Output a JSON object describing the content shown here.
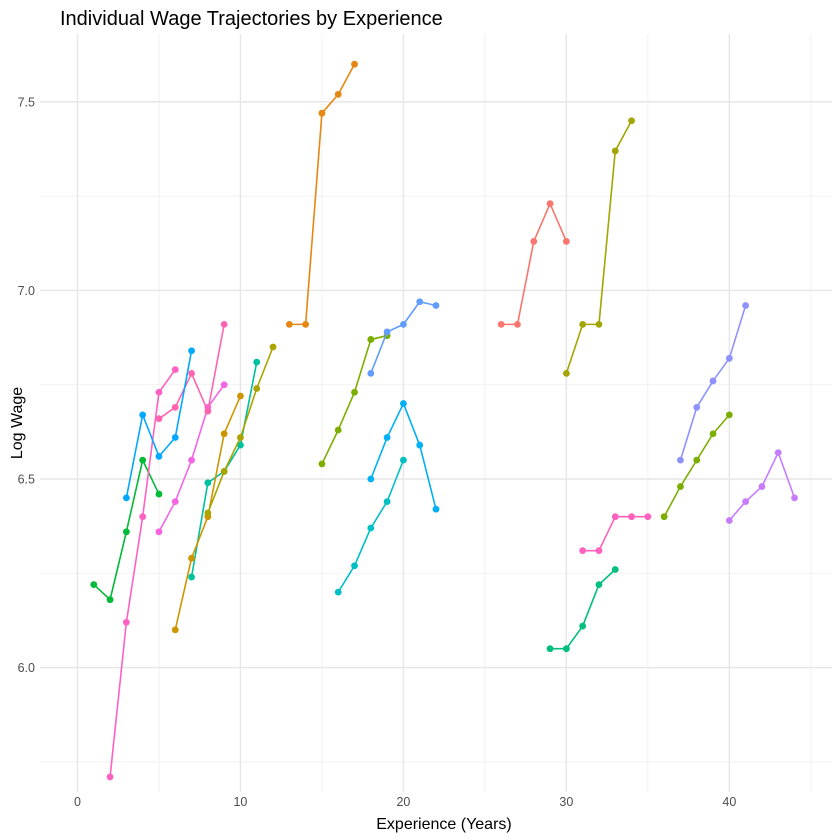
{
  "chart_data": {
    "type": "line",
    "title": "Individual Wage Trajectories by Experience",
    "xlabel": "Experience (Years)",
    "ylabel": "Log Wage",
    "xlim": [
      -2.3,
      46.3
    ],
    "ylim": [
      5.67,
      7.68
    ],
    "x_ticks": [
      0,
      10,
      20,
      30,
      40
    ],
    "x_tick_labels": [
      "0",
      "10",
      "20",
      "30",
      "40"
    ],
    "y_ticks": [
      6.0,
      6.5,
      7.0,
      7.5
    ],
    "y_tick_labels": [
      "6.0",
      "6.5",
      "7.0",
      "7.5"
    ],
    "grid": true,
    "legend": "none",
    "series": [
      {
        "color": "#7CAE00",
        "x": [
          36,
          37,
          38,
          39,
          40
        ],
        "y": [
          6.4,
          6.48,
          6.55,
          6.62,
          6.67
        ]
      },
      {
        "color": "#00BA38",
        "x": [
          1,
          2,
          3,
          4,
          5
        ],
        "y": [
          6.22,
          6.18,
          6.36,
          6.55,
          6.46
        ]
      },
      {
        "color": "#00C19F",
        "x": [
          7,
          8,
          9,
          10,
          11
        ],
        "y": [
          6.24,
          6.49,
          6.52,
          6.59,
          6.81
        ]
      },
      {
        "color": "#F564E3",
        "x": [
          5,
          6,
          7,
          8,
          9
        ],
        "y": [
          6.36,
          6.44,
          6.55,
          6.69,
          6.75
        ]
      },
      {
        "color": "#FF64B0",
        "x": [
          5,
          6,
          7,
          8,
          9
        ],
        "y": [
          6.66,
          6.69,
          6.78,
          6.68,
          6.91
        ]
      },
      {
        "color": "#FF61C3",
        "x": [
          2,
          3,
          4,
          5,
          6
        ],
        "y": [
          5.71,
          6.12,
          6.4,
          6.73,
          6.79
        ]
      },
      {
        "color": "#00A9FF",
        "x": [
          3,
          4,
          5,
          6,
          7
        ],
        "y": [
          6.45,
          6.67,
          6.56,
          6.61,
          6.84
        ]
      },
      {
        "color": "#CD9600",
        "x": [
          6,
          7,
          8,
          9,
          10
        ],
        "y": [
          6.1,
          6.29,
          6.4,
          6.62,
          6.72
        ]
      },
      {
        "color": "#ABA300",
        "x": [
          8,
          9,
          10,
          11,
          12
        ],
        "y": [
          6.41,
          6.52,
          6.61,
          6.74,
          6.85
        ]
      },
      {
        "color": "#E68613",
        "x": [
          13,
          14,
          15,
          16,
          17
        ],
        "y": [
          6.91,
          6.91,
          7.47,
          7.52,
          7.6
        ]
      },
      {
        "color": "#7CAE00",
        "x": [
          15,
          16,
          17,
          18,
          19
        ],
        "y": [
          6.54,
          6.63,
          6.73,
          6.87,
          6.88
        ]
      },
      {
        "color": "#00BFC4",
        "x": [
          16,
          17,
          18,
          19,
          20
        ],
        "y": [
          6.2,
          6.27,
          6.37,
          6.44,
          6.55
        ]
      },
      {
        "color": "#00B0F6",
        "x": [
          18,
          19,
          20,
          21,
          22
        ],
        "y": [
          6.5,
          6.61,
          6.7,
          6.59,
          6.42
        ]
      },
      {
        "color": "#619CFF",
        "x": [
          18,
          19,
          20,
          21,
          22
        ],
        "y": [
          6.78,
          6.89,
          6.91,
          6.97,
          6.96
        ]
      },
      {
        "color": "#F8766D",
        "x": [
          26,
          27,
          28,
          29,
          30
        ],
        "y": [
          6.91,
          6.91,
          7.13,
          7.23,
          7.13
        ]
      },
      {
        "color": "#A3A500",
        "x": [
          30,
          31,
          32,
          33,
          34
        ],
        "y": [
          6.78,
          6.91,
          6.91,
          7.37,
          7.45
        ]
      },
      {
        "color": "#00BF7D",
        "x": [
          29,
          30,
          31,
          32,
          33
        ],
        "y": [
          6.05,
          6.05,
          6.11,
          6.22,
          6.26
        ]
      },
      {
        "color": "#FF62BC",
        "x": [
          31,
          32,
          33,
          34,
          35
        ],
        "y": [
          6.31,
          6.31,
          6.4,
          6.4,
          6.4
        ]
      },
      {
        "color": "#8F91FF",
        "x": [
          37,
          38,
          39,
          40,
          41
        ],
        "y": [
          6.55,
          6.69,
          6.76,
          6.82,
          6.96
        ]
      },
      {
        "color": "#C77CFF",
        "x": [
          40,
          41,
          42,
          43,
          44
        ],
        "y": [
          6.39,
          6.44,
          6.48,
          6.57,
          6.45
        ]
      }
    ]
  }
}
